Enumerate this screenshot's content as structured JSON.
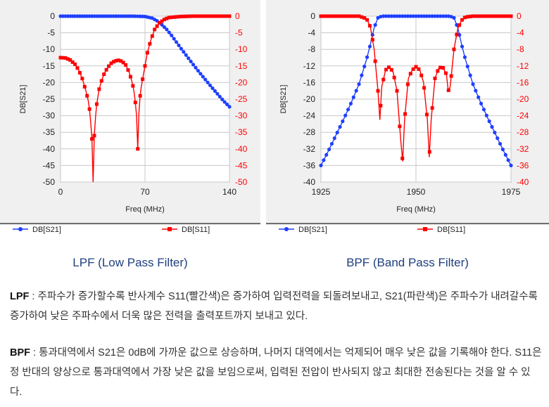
{
  "captions": {
    "lpf": "LPF (Low Pass Filter)",
    "bpf": "BPF (Band Pass Filter)"
  },
  "paragraphs": {
    "lpf_term": "LPF",
    "lpf_text": " : 주파수가 증가할수록 반사계수 S11(빨간색)은 증가하여 입력전력을 되돌려보내고, S21(파란색)은 주파수가 내려갈수록 증가하여 낮은 주파수에서 더욱 많은 전력을 출력포트까지 보내고 있다.",
    "bpf_term": "BPF",
    "bpf_text": " : 통과대역에서 S21은 0dB에 가까운 값으로 상승하며, 나머지 대역에서는 억제되어 매우 낮은 값을 기록해야 한다. S11은 정 반대의 양상으로 통과대역에서 가장 낮은 값을 보임으로써, 입력된 전압이 반사되지 않고 최대한 전송된다는 것을 알 수 있다."
  },
  "colors": {
    "s21": "#1f3fff",
    "s11": "#ff0000",
    "grid": "#c8c8c8",
    "plot_bg": "#ffffff"
  },
  "chart_data": [
    {
      "type": "line",
      "xlabel": "Freq (MHz)",
      "ylabel": "DB[S21]",
      "xlim": [
        0,
        140
      ],
      "xticks": [
        0,
        70,
        140
      ],
      "ylim": [
        -50,
        0
      ],
      "yticks": [
        0,
        -5,
        -10,
        -15,
        -20,
        -25,
        -30,
        -35,
        -40,
        -45,
        -50
      ],
      "y2lim": [
        -50,
        0
      ],
      "y2ticks": [
        0,
        -5,
        -10,
        -15,
        -20,
        -25,
        -30,
        -35,
        -40,
        -45,
        -50
      ],
      "grid": true,
      "legend": [
        "DB[S21]",
        "DB[S11]"
      ],
      "series": [
        {
          "name": "DB[S21]",
          "axis": "left",
          "x": [
            0,
            10,
            20,
            30,
            40,
            50,
            60,
            70,
            76,
            80,
            84,
            88,
            92,
            96,
            100,
            105,
            110,
            115,
            120,
            125,
            130,
            135,
            140
          ],
          "y": [
            0,
            0,
            0,
            0,
            0,
            0,
            0,
            -0.1,
            -0.6,
            -1.4,
            -2.6,
            -4.0,
            -5.8,
            -7.8,
            -9.8,
            -12.2,
            -14.6,
            -16.9,
            -19.1,
            -21.3,
            -23.4,
            -25.5,
            -27.3
          ]
        },
        {
          "name": "DB[S11]",
          "axis": "right",
          "x": [
            0,
            4,
            8,
            12,
            15,
            18,
            21,
            23,
            24,
            25,
            26,
            27,
            28,
            29,
            30,
            32,
            34,
            36,
            39,
            42,
            45,
            48,
            51,
            54,
            57,
            59,
            60,
            61,
            62,
            63,
            64,
            65,
            66,
            67,
            68,
            70,
            72,
            75,
            78,
            82,
            86,
            90,
            100,
            110,
            120,
            130,
            140
          ],
          "y": [
            -12.5,
            -12.6,
            -13.2,
            -14.5,
            -16.2,
            -18.8,
            -22.5,
            -25.5,
            -28,
            -32,
            -37,
            -50,
            -36,
            -30.5,
            -26.5,
            -22,
            -19.5,
            -17.5,
            -15.5,
            -14.2,
            -13.5,
            -13.3,
            -13.6,
            -14.7,
            -17,
            -19.5,
            -21,
            -23,
            -26,
            -30,
            -40,
            -29,
            -24,
            -21,
            -19,
            -15,
            -11,
            -7,
            -4,
            -2,
            -1,
            -0.4,
            -0.1,
            0,
            0,
            0,
            0
          ]
        }
      ]
    },
    {
      "type": "line",
      "xlabel": "Freq (MHz)",
      "ylabel": "DB[S21]",
      "xlim": [
        1925,
        1975
      ],
      "xticks": [
        1925,
        1950,
        1975
      ],
      "ylim": [
        -40,
        0
      ],
      "yticks": [
        0,
        -4,
        -8,
        -12,
        -16,
        -20,
        -24,
        -28,
        -32,
        -36,
        -40
      ],
      "y2lim": [
        -40,
        0
      ],
      "y2ticks": [
        0,
        -4,
        -8,
        -12,
        -16,
        -20,
        -24,
        -28,
        -32,
        -36,
        -40
      ],
      "grid": true,
      "legend": [
        "DB[S21]",
        "DB[S11]"
      ],
      "series": [
        {
          "name": "DB[S21]",
          "axis": "left",
          "x": [
            1925,
            1927,
            1929,
            1931,
            1933,
            1935,
            1937,
            1938,
            1939,
            1940,
            1941,
            1945,
            1950,
            1955,
            1959,
            1960,
            1961,
            1962,
            1963,
            1965,
            1967,
            1969,
            1971,
            1973,
            1975
          ],
          "y": [
            -36,
            -32.4,
            -28.6,
            -24.8,
            -20.8,
            -16.4,
            -10.4,
            -6.8,
            -2.8,
            -0.4,
            0,
            0,
            0,
            0,
            0,
            -0.4,
            -2.8,
            -6.8,
            -10.4,
            -16.4,
            -20.8,
            -24.8,
            -28.6,
            -32.4,
            -36
          ]
        },
        {
          "name": "DB[S11]",
          "axis": "right",
          "x": [
            1925,
            1930,
            1935,
            1937,
            1938,
            1939,
            1940,
            1940.5,
            1941,
            1942,
            1943,
            1944,
            1945,
            1946,
            1946.5,
            1947,
            1948,
            1949,
            1950,
            1951,
            1952,
            1953,
            1953.5,
            1954,
            1955,
            1956,
            1957,
            1958,
            1958.5,
            1959,
            1960,
            1961,
            1962,
            1963,
            1965,
            1970,
            1975
          ],
          "y": [
            0,
            0,
            0,
            -0.6,
            -2.6,
            -8,
            -18,
            -25,
            -17,
            -13,
            -12.2,
            -13.5,
            -18,
            -30,
            -35,
            -25,
            -15,
            -13,
            -12.2,
            -13,
            -16,
            -25,
            -34,
            -25,
            -15,
            -12.5,
            -12.2,
            -14,
            -18,
            -17,
            -8,
            -3,
            -1,
            -0.2,
            0,
            0,
            0
          ]
        }
      ]
    }
  ]
}
